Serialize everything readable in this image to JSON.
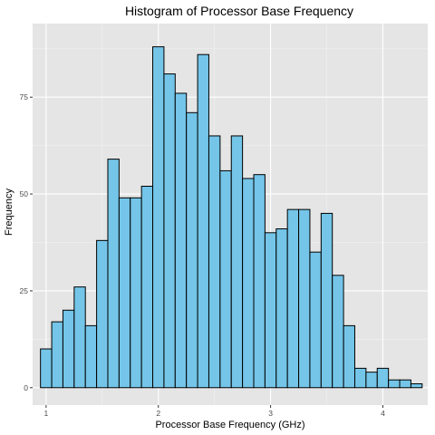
{
  "chart_data": {
    "type": "bar",
    "title": "Histogram of Processor Base Frequency",
    "xlabel": "Processor Base Frequency (GHz)",
    "ylabel": "Frequency",
    "xlim": [
      0.88,
      4.4
    ],
    "ylim": [
      -4.5,
      94
    ],
    "x_ticks": [
      1,
      2,
      3,
      4
    ],
    "y_ticks": [
      0,
      25,
      50,
      75
    ],
    "bin_width": 0.1,
    "bin_start": 0.95,
    "values": [
      10,
      17,
      20,
      26,
      16,
      38,
      59,
      49,
      49,
      52,
      88,
      81,
      76,
      71,
      86,
      65,
      56,
      65,
      54,
      55,
      40,
      41,
      46,
      46,
      35,
      45,
      29,
      16,
      5,
      4,
      5,
      2,
      2,
      1
    ],
    "colors": {
      "fill": "#74C5E8",
      "stroke": "#000000",
      "panel": "#E5E5E5",
      "grid_major": "#FFFFFF"
    },
    "grid": true,
    "legend": "none"
  }
}
